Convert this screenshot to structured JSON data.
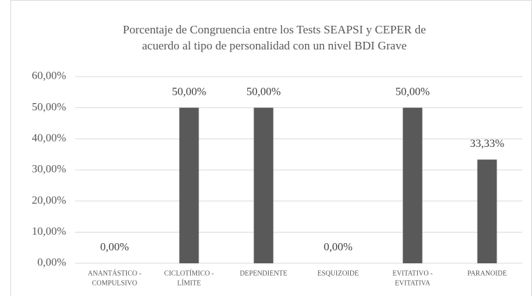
{
  "chart_data": {
    "type": "bar",
    "title": [
      "Porcentaje de Congruencia entre los Tests SEAPSI y CEPER de",
      "acuerdo al tipo de personalidad con un nivel BDI Grave"
    ],
    "categories": [
      [
        "ANANTÁSTICO -",
        "COMPULSIVO"
      ],
      [
        "CICLOTÍMICO -",
        "LÍMITE"
      ],
      [
        "DEPENDIENTE"
      ],
      [
        "ESQUIZOIDE"
      ],
      [
        "EVITATIVO -",
        "EVITATIVA"
      ],
      [
        "PARANOIDE"
      ]
    ],
    "values": [
      0,
      50,
      50,
      0,
      50,
      33.33
    ],
    "value_labels": [
      "0,00%",
      "50,00%",
      "50,00%",
      "0,00%",
      "50,00%",
      "33,33%"
    ],
    "color": "#595959",
    "ylim": [
      0,
      60
    ],
    "yticks": [
      {
        "value": 0,
        "label": "0,00%"
      },
      {
        "value": 10,
        "label": "10,00%"
      },
      {
        "value": 20,
        "label": "20,00%"
      },
      {
        "value": 30,
        "label": "30,00%"
      },
      {
        "value": 40,
        "label": "40,00%"
      },
      {
        "value": 50,
        "label": "50,00%"
      },
      {
        "value": 60,
        "label": "60,00%"
      }
    ],
    "grid": true
  }
}
